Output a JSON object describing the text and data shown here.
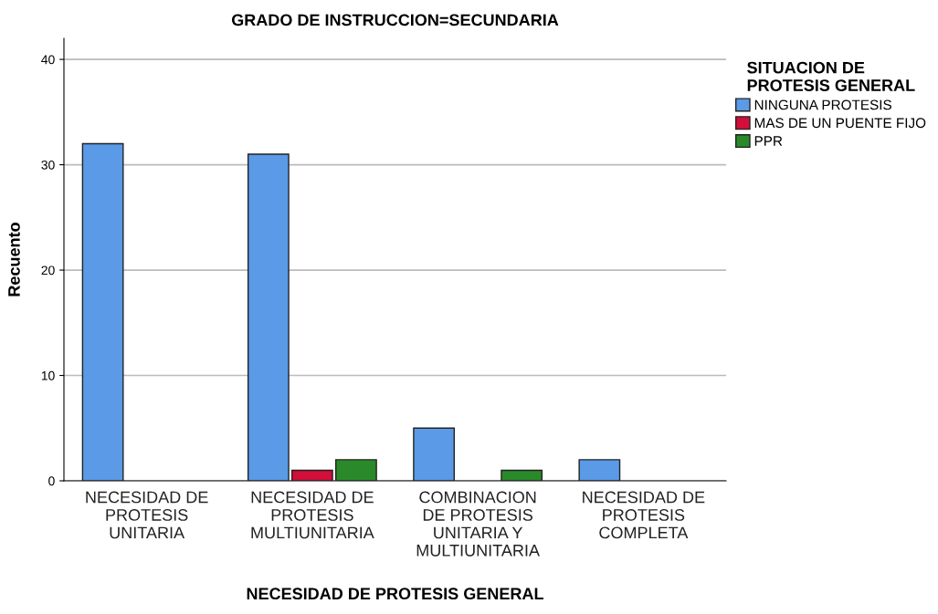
{
  "chart_data": {
    "type": "bar",
    "title": "GRADO DE INSTRUCCION=SECUNDARIA",
    "xlabel": "NECESIDAD DE PROTESIS GENERAL",
    "ylabel": "Recuento",
    "legend_title": "SITUACION DE\nPROTESIS GENERAL",
    "categories": [
      "NECESIDAD DE\nPROTESIS\nUNITARIA",
      "NECESIDAD DE\nPROTESIS\nMULTIUNITARIA",
      "COMBINACION\nDE PROTESIS\nUNITARIA Y\nMULTIUNITARIA",
      "NECESIDAD DE\nPROTESIS\nCOMPLETA"
    ],
    "series": [
      {
        "name": "NINGUNA PROTESIS",
        "color": "#5a9ae6",
        "values": [
          32,
          31,
          5,
          2
        ]
      },
      {
        "name": "MAS DE UN PUENTE FIJO",
        "color": "#d10f3a",
        "values": [
          null,
          1,
          null,
          null
        ]
      },
      {
        "name": "PPR",
        "color": "#2a8a2a",
        "values": [
          null,
          2,
          1,
          null
        ]
      }
    ],
    "ylim": [
      0,
      42
    ],
    "yticks": [
      0,
      10,
      20,
      30,
      40
    ],
    "grid": "y",
    "legend": "top right"
  }
}
